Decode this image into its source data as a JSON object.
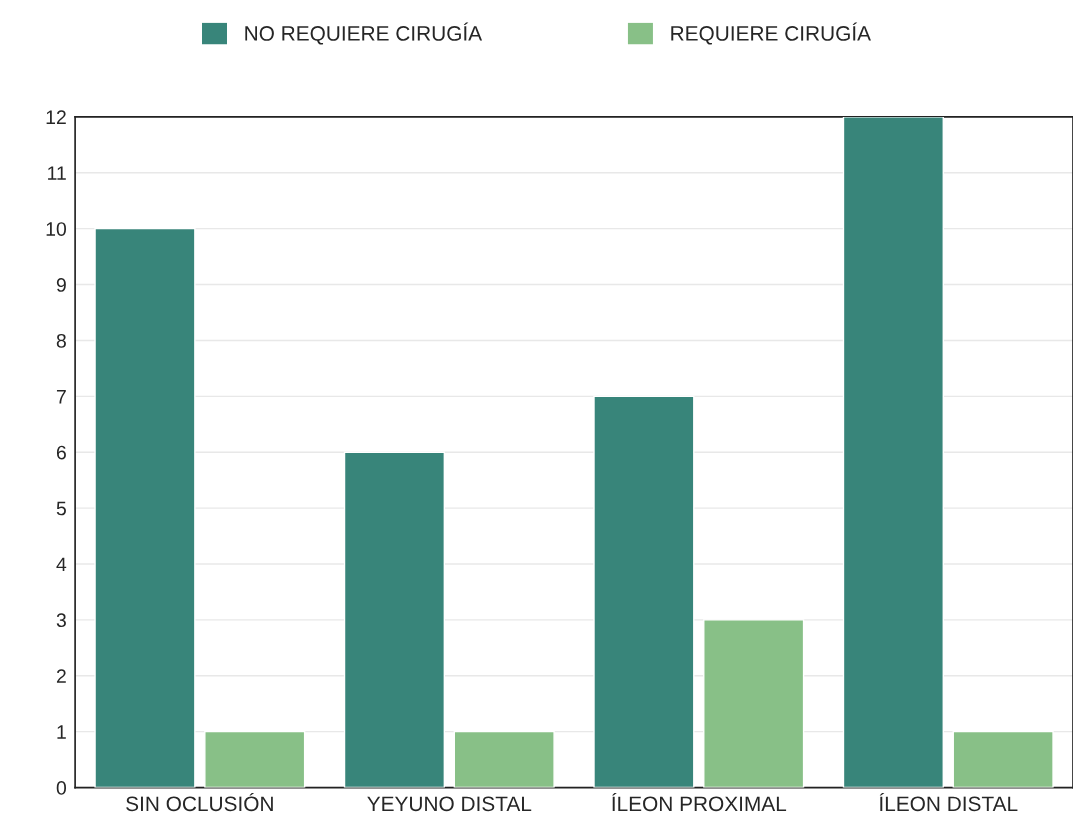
{
  "chart_data": {
    "type": "bar",
    "categories": [
      "SIN OCLUSIÓN",
      "YEYUNO DISTAL",
      "ÍLEON PROXIMAL",
      "ÍLEON DISTAL"
    ],
    "series": [
      {
        "name": "NO REQUIERE CIRUGÍA",
        "color": "#38857a",
        "values": [
          10,
          6,
          7,
          12
        ]
      },
      {
        "name": "REQUIERE CIRUGÍA",
        "color": "#88c087",
        "values": [
          1,
          1,
          3,
          1
        ]
      }
    ],
    "ylim": [
      0,
      12
    ],
    "yticks": [
      0,
      1,
      2,
      3,
      4,
      5,
      6,
      7,
      8,
      9,
      10,
      11,
      12
    ],
    "grid": "y",
    "legend": "top"
  }
}
